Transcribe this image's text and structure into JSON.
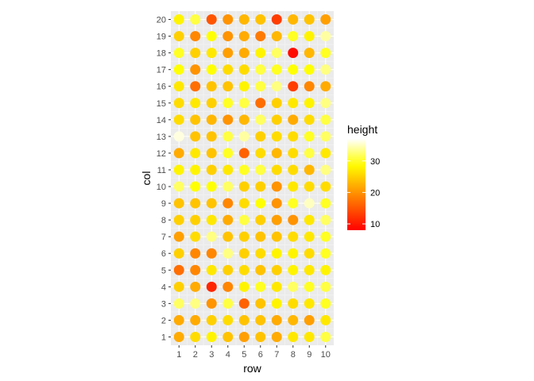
{
  "chart_data": {
    "type": "scatter",
    "xlabel": "row",
    "ylabel": "col",
    "x_ticks": [
      "1",
      "2",
      "3",
      "4",
      "5",
      "6",
      "7",
      "8",
      "9",
      "10"
    ],
    "y_ticks": [
      "1",
      "2",
      "3",
      "4",
      "5",
      "6",
      "7",
      "8",
      "9",
      "10",
      "11",
      "12",
      "13",
      "14",
      "15",
      "16",
      "17",
      "18",
      "19",
      "20"
    ],
    "xlim": [
      0.5,
      10.5
    ],
    "ylim": [
      0.5,
      20.5
    ],
    "grid": true,
    "color_scale": {
      "variable": "height",
      "low_color": "#ff0000",
      "high_color": "#ffffff",
      "mid_color": "#ffff00",
      "limits": [
        8,
        37
      ],
      "breaks": [
        10,
        20,
        30
      ]
    },
    "legend": {
      "title": "height",
      "placement": "right",
      "labels": [
        "10",
        "20",
        "30"
      ]
    },
    "heights": [
      [
        22,
        26,
        28,
        24,
        21,
        24,
        22,
        27,
        27,
        31
      ],
      [
        22,
        22,
        25,
        26,
        24,
        24,
        22,
        23,
        21,
        27
      ],
      [
        32,
        33,
        20,
        31,
        16,
        24,
        28,
        26,
        27,
        30
      ],
      [
        25,
        22,
        11,
        19,
        28,
        30,
        27,
        32,
        30,
        31
      ],
      [
        17,
        19,
        27,
        25,
        26,
        24,
        25,
        28,
        27,
        28
      ],
      [
        25,
        19,
        19,
        33,
        25,
        26,
        28,
        28,
        26,
        30
      ],
      [
        21,
        26,
        33,
        24,
        25,
        24,
        24,
        26,
        27,
        30
      ],
      [
        25,
        25,
        27,
        22,
        31,
        25,
        21,
        20,
        27,
        32
      ],
      [
        24,
        24,
        24,
        19,
        26,
        29,
        20,
        30,
        35,
        30
      ],
      [
        32,
        29,
        29,
        32,
        25,
        25,
        20,
        27,
        26,
        26
      ],
      [
        28,
        28,
        25,
        27,
        30,
        31,
        26,
        26,
        23,
        33
      ],
      [
        22,
        27,
        24,
        30,
        16,
        26,
        23,
        26,
        31,
        27
      ],
      [
        36,
        24,
        24,
        31,
        34,
        25,
        26,
        26,
        30,
        32
      ],
      [
        26,
        24,
        23,
        20,
        23,
        32,
        25,
        22,
        26,
        31
      ],
      [
        26,
        27,
        25,
        30,
        31,
        17,
        25,
        27,
        28,
        33
      ],
      [
        27,
        17,
        24,
        24,
        28,
        31,
        33,
        13,
        19,
        22
      ],
      [
        29,
        20,
        29,
        26,
        26,
        31,
        30,
        29,
        29,
        33
      ],
      [
        30,
        25,
        27,
        21,
        22,
        28,
        32,
        9,
        23,
        30
      ],
      [
        25,
        19,
        29,
        20,
        22,
        18,
        23,
        30,
        28,
        34
      ],
      [
        28,
        31,
        15,
        20,
        23,
        24,
        13,
        23,
        24,
        21
      ]
    ]
  }
}
